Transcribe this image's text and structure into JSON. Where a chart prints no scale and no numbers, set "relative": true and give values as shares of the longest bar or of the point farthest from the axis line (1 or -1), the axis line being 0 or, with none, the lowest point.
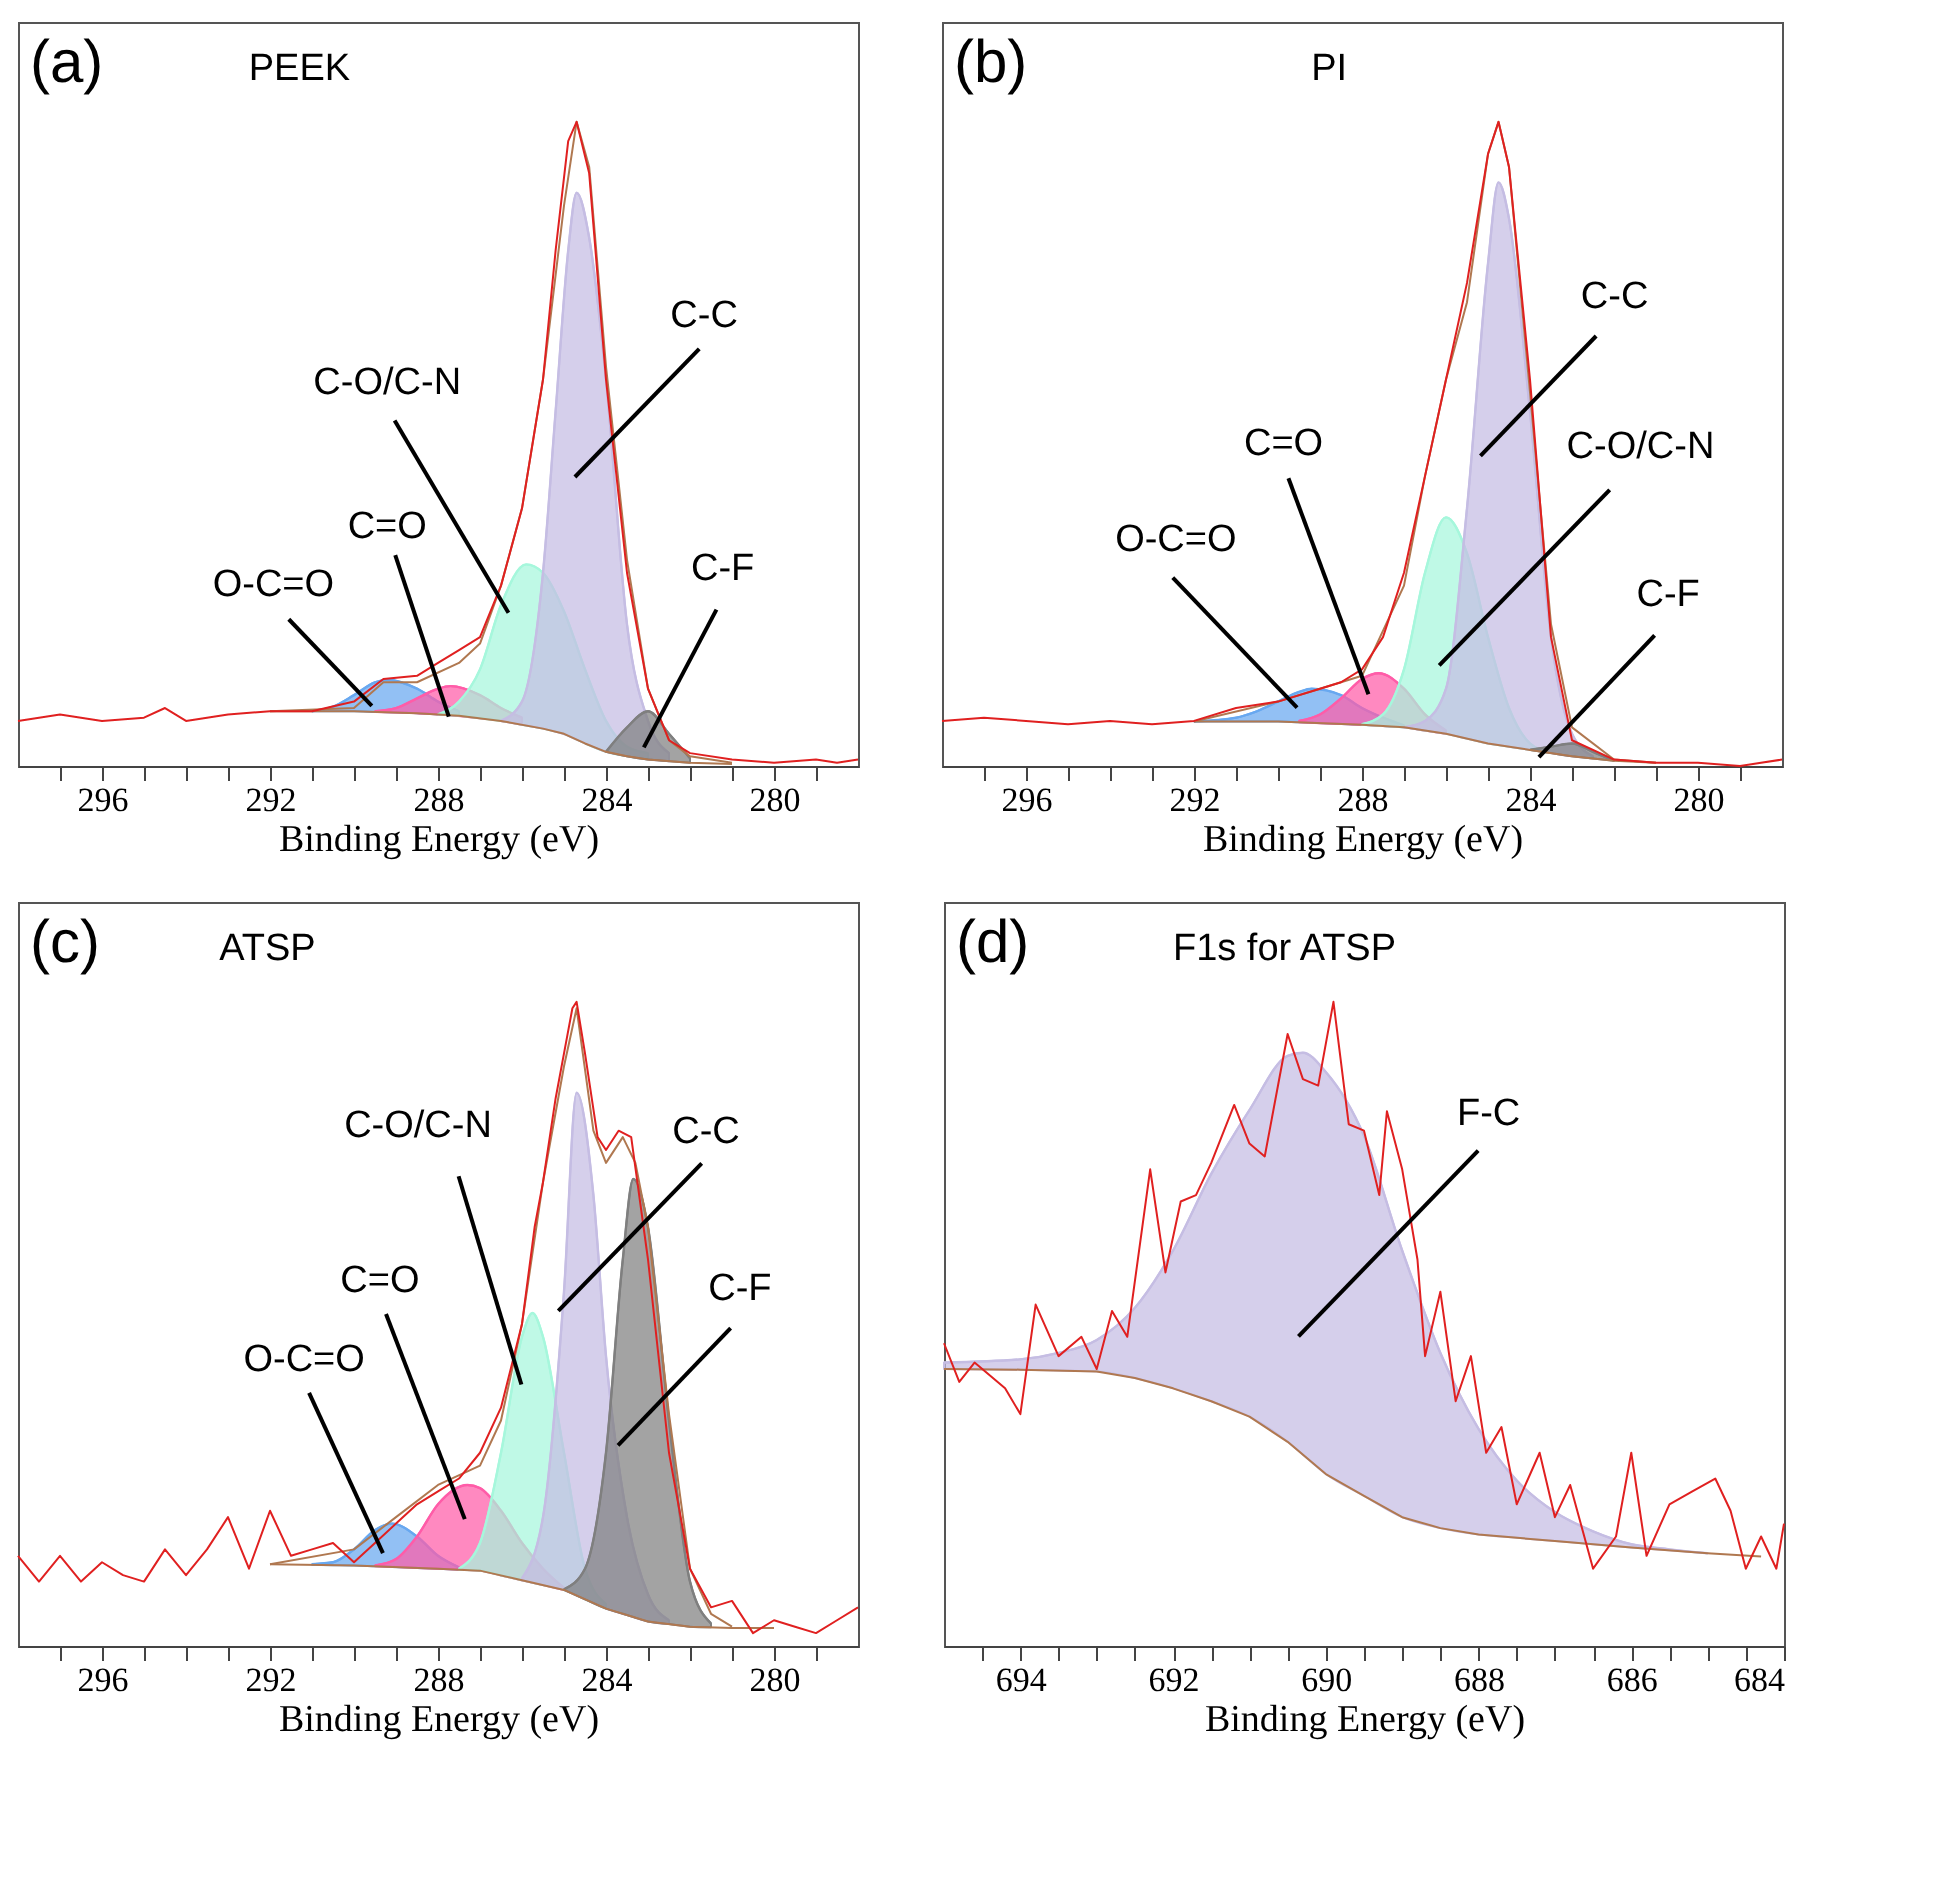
{
  "chart_data": [
    {
      "type": "area",
      "title": "(a)",
      "subtitle": "PEEK",
      "xlabel": "Binding Energy (eV)",
      "relative": true,
      "xlim": [
        298,
        278
      ],
      "xticks": [
        {
          "value": 297,
          "label": null
        },
        296,
        {
          "value": 295,
          "label": null
        },
        {
          "value": 294,
          "label": null
        },
        {
          "value": 293,
          "label": null
        },
        292,
        {
          "value": 291,
          "label": null
        },
        {
          "value": 290,
          "label": null
        },
        {
          "value": 289,
          "label": null
        },
        288,
        {
          "value": 287,
          "label": null
        },
        {
          "value": 286,
          "label": null
        },
        {
          "value": 285,
          "label": null
        },
        284,
        {
          "value": 283,
          "label": null
        },
        {
          "value": 282,
          "label": null
        },
        {
          "value": 281,
          "label": null
        },
        280,
        {
          "value": 279,
          "label": null
        }
      ],
      "series": [
        {
          "type": "area",
          "color": "#68a8f0",
          "x": [
            291,
            290.5,
            290,
            289.5,
            289.2,
            288.5,
            288,
            287.5
          ],
          "values": [
            0.085,
            0.092,
            0.11,
            0.13,
            0.134,
            0.12,
            0.1,
            0.085
          ]
        },
        {
          "type": "area",
          "color": "#ff5ca8",
          "x": [
            289.5,
            289,
            288.5,
            288,
            287.7,
            287,
            286.5,
            286
          ],
          "values": [
            0.085,
            0.09,
            0.105,
            0.12,
            0.124,
            0.11,
            0.09,
            0.075
          ]
        },
        {
          "type": "area",
          "color": "#a6f7dc",
          "x": [
            288,
            287.5,
            287,
            286.5,
            285.9,
            285.5,
            285,
            284.5,
            284,
            283.5,
            283
          ],
          "values": [
            0.08,
            0.1,
            0.15,
            0.25,
            0.313,
            0.3,
            0.24,
            0.15,
            0.07,
            0.03,
            0.02
          ]
        },
        {
          "type": "area",
          "color": "#c5bde3",
          "x": [
            286.5,
            286,
            285.5,
            285.2,
            284.9,
            284.7,
            284.4,
            284,
            283.5,
            283,
            282.5
          ],
          "values": [
            0.07,
            0.1,
            0.3,
            0.55,
            0.8,
            0.89,
            0.82,
            0.6,
            0.22,
            0.07,
            0.02
          ]
        },
        {
          "type": "area",
          "color": "#7f7f7f",
          "x": [
            284,
            283.5,
            283,
            282.5,
            282
          ],
          "values": [
            0.022,
            0.06,
            0.085,
            0.05,
            0.012
          ]
        },
        {
          "type": "line",
          "color": "#b07850",
          "x": [
            292,
            290,
            288.5,
            287.5,
            286.5,
            285.5,
            285,
            284.5,
            284,
            283.5,
            283,
            282,
            281
          ],
          "values": [
            0.085,
            0.085,
            0.082,
            0.078,
            0.07,
            0.058,
            0.05,
            0.035,
            0.022,
            0.015,
            0.01,
            0.005,
            0.003
          ]
        },
        {
          "type": "line",
          "color": "#b07850",
          "x": [
            292,
            290,
            289.3,
            288.5,
            287.5,
            287,
            286.5,
            286,
            285.5,
            285,
            284.7,
            284.4,
            284,
            283.5,
            283,
            282.5,
            282,
            281
          ],
          "values": [
            0.085,
            0.09,
            0.13,
            0.13,
            0.16,
            0.19,
            0.28,
            0.4,
            0.6,
            0.87,
            1.0,
            0.93,
            0.62,
            0.32,
            0.12,
            0.04,
            0.015,
            0.005
          ]
        },
        {
          "type": "line",
          "color": "#e02020",
          "x": [
            298,
            297,
            296,
            295,
            294.5,
            294,
            293,
            292,
            291,
            290,
            289.3,
            288.5,
            288,
            287.5,
            287,
            286.5,
            286,
            285.5,
            285.2,
            284.9,
            284.7,
            284.4,
            284,
            283.5,
            283,
            282.5,
            282,
            281,
            280,
            279,
            278.5,
            278
          ],
          "values": [
            0.07,
            0.08,
            0.07,
            0.075,
            0.09,
            0.07,
            0.08,
            0.085,
            0.085,
            0.1,
            0.135,
            0.14,
            0.16,
            0.18,
            0.2,
            0.28,
            0.4,
            0.6,
            0.8,
            0.97,
            1.0,
            0.92,
            0.6,
            0.3,
            0.12,
            0.04,
            0.02,
            0.01,
            0.005,
            0.01,
            0.005,
            0.01
          ]
        }
      ],
      "annotations": [
        "O-C=O",
        "C=O",
        "C-O/C-N",
        "C-C",
        "C-F"
      ]
    },
    {
      "type": "area",
      "title": "(b)",
      "subtitle": "PI",
      "xlabel": "Binding Energy (eV)",
      "relative": true,
      "xlim": [
        298,
        278
      ],
      "xticks": [
        {
          "value": 297,
          "label": null
        },
        296,
        {
          "value": 295,
          "label": null
        },
        {
          "value": 294,
          "label": null
        },
        {
          "value": 293,
          "label": null
        },
        292,
        {
          "value": 291,
          "label": null
        },
        {
          "value": 290,
          "label": null
        },
        {
          "value": 289,
          "label": null
        },
        288,
        {
          "value": 287,
          "label": null
        },
        {
          "value": 286,
          "label": null
        },
        {
          "value": 285,
          "label": null
        },
        284,
        {
          "value": 283,
          "label": null
        },
        {
          "value": 282,
          "label": null
        },
        {
          "value": 281,
          "label": null
        },
        280,
        {
          "value": 279,
          "label": null
        }
      ],
      "series": [
        {
          "type": "area",
          "color": "#68a8f0",
          "x": [
            292,
            291,
            290.5,
            290,
            289.5,
            289.2,
            288.5,
            288,
            287.5,
            287
          ],
          "values": [
            0.069,
            0.075,
            0.085,
            0.1,
            0.115,
            0.12,
            0.11,
            0.09,
            0.075,
            0.063
          ]
        },
        {
          "type": "area",
          "color": "#ff5ca8",
          "x": [
            289.5,
            289,
            288.5,
            288,
            287.6,
            287,
            286.5,
            286
          ],
          "values": [
            0.07,
            0.08,
            0.105,
            0.135,
            0.144,
            0.12,
            0.08,
            0.055
          ]
        },
        {
          "type": "area",
          "color": "#a6f7dc",
          "x": [
            288,
            287.5,
            287,
            286.5,
            286,
            285.5,
            285,
            284.5,
            284,
            283.5
          ],
          "values": [
            0.065,
            0.08,
            0.15,
            0.3,
            0.386,
            0.33,
            0.2,
            0.09,
            0.035,
            0.02
          ]
        },
        {
          "type": "area",
          "color": "#c5bde3",
          "x": [
            287,
            286.5,
            286,
            285.5,
            285,
            284.75,
            284.5,
            284,
            283.5,
            283,
            282.5
          ],
          "values": [
            0.06,
            0.07,
            0.12,
            0.4,
            0.78,
            0.906,
            0.85,
            0.55,
            0.2,
            0.05,
            0.015
          ]
        },
        {
          "type": "area",
          "color": "#7f7f7f",
          "x": [
            284,
            283.5,
            283,
            282.5,
            282
          ],
          "values": [
            0.025,
            0.03,
            0.035,
            0.022,
            0.008
          ]
        },
        {
          "type": "line",
          "color": "#b07850",
          "x": [
            292,
            290,
            288,
            287,
            286,
            285,
            284,
            283,
            282,
            281
          ],
          "values": [
            0.069,
            0.069,
            0.064,
            0.06,
            0.05,
            0.035,
            0.025,
            0.015,
            0.008,
            0.005
          ]
        },
        {
          "type": "line",
          "color": "#b07850",
          "x": [
            292,
            290,
            289,
            288,
            287,
            286.5,
            286,
            285.5,
            285,
            284.75,
            284.5,
            284,
            283.5,
            283,
            282,
            281
          ],
          "values": [
            0.069,
            0.1,
            0.12,
            0.14,
            0.28,
            0.45,
            0.6,
            0.72,
            0.95,
            1.0,
            0.93,
            0.58,
            0.22,
            0.06,
            0.01,
            0.005
          ]
        },
        {
          "type": "line",
          "color": "#e02020",
          "x": [
            298,
            297,
            296,
            295,
            294,
            293,
            292,
            291,
            290,
            289,
            288.5,
            288,
            287.5,
            287,
            286.5,
            286,
            285.5,
            285,
            284.75,
            284.5,
            284,
            283.5,
            283,
            282,
            281,
            280,
            279,
            278
          ],
          "values": [
            0.07,
            0.075,
            0.07,
            0.065,
            0.07,
            0.065,
            0.07,
            0.09,
            0.1,
            0.12,
            0.13,
            0.15,
            0.2,
            0.3,
            0.45,
            0.6,
            0.75,
            0.95,
            1.0,
            0.93,
            0.6,
            0.2,
            0.04,
            0.01,
            0.005,
            0.005,
            0.0,
            0.01
          ]
        }
      ],
      "annotations": [
        "O-C=O",
        "C=O",
        "C-C",
        "C-O/C-N",
        "C-F"
      ]
    },
    {
      "type": "area",
      "title": "(c)",
      "subtitle": "ATSP",
      "xlabel": "Binding Energy (eV)",
      "relative": true,
      "xlim": [
        298,
        278
      ],
      "xticks": [
        {
          "value": 297,
          "label": null
        },
        296,
        {
          "value": 295,
          "label": null
        },
        {
          "value": 294,
          "label": null
        },
        {
          "value": 293,
          "label": null
        },
        292,
        {
          "value": 291,
          "label": null
        },
        {
          "value": 290,
          "label": null
        },
        {
          "value": 289,
          "label": null
        },
        288,
        {
          "value": 287,
          "label": null
        },
        {
          "value": 286,
          "label": null
        },
        {
          "value": 285,
          "label": null
        },
        284,
        {
          "value": 283,
          "label": null
        },
        {
          "value": 282,
          "label": null
        },
        {
          "value": 281,
          "label": null
        },
        280,
        {
          "value": 279,
          "label": null
        }
      ],
      "series": [
        {
          "type": "area",
          "color": "#68a8f0",
          "x": [
            291,
            290.5,
            290,
            289.5,
            289.1,
            288.5,
            288,
            287.5
          ],
          "values": [
            0.127,
            0.13,
            0.15,
            0.18,
            0.19,
            0.17,
            0.14,
            0.122
          ]
        },
        {
          "type": "area",
          "color": "#ff5ca8",
          "x": [
            289.5,
            289,
            288.5,
            288,
            287.3,
            287,
            286.5,
            286,
            285.5,
            285
          ],
          "values": [
            0.125,
            0.135,
            0.17,
            0.22,
            0.25,
            0.245,
            0.21,
            0.16,
            0.12,
            0.09
          ]
        },
        {
          "type": "area",
          "color": "#a6f7dc",
          "x": [
            287.5,
            287,
            286.5,
            286,
            285.75,
            285.5,
            285,
            284.5,
            284
          ],
          "values": [
            0.12,
            0.16,
            0.3,
            0.48,
            0.517,
            0.48,
            0.3,
            0.12,
            0.065
          ]
        },
        {
          "type": "area",
          "color": "#c5bde3",
          "x": [
            286,
            285.5,
            285,
            284.7,
            284.3,
            284,
            283.5,
            283,
            282.5
          ],
          "values": [
            0.105,
            0.2,
            0.55,
            0.859,
            0.7,
            0.45,
            0.2,
            0.08,
            0.04
          ]
        },
        {
          "type": "area",
          "color": "#7f7f7f",
          "x": [
            285,
            284.5,
            284,
            283.6,
            283.35,
            283,
            282.5,
            282,
            281.5
          ],
          "values": [
            0.088,
            0.12,
            0.3,
            0.6,
            0.725,
            0.65,
            0.35,
            0.1,
            0.035
          ]
        },
        {
          "type": "line",
          "color": "#b07850",
          "x": [
            292,
            290,
            288,
            287,
            286,
            285,
            284,
            283,
            282,
            281,
            280
          ],
          "values": [
            0.127,
            0.125,
            0.12,
            0.117,
            0.102,
            0.087,
            0.058,
            0.038,
            0.03,
            0.028,
            0.028
          ]
        },
        {
          "type": "line",
          "color": "#b07850",
          "x": [
            292,
            290,
            289,
            288,
            287,
            286.5,
            286,
            285.5,
            285,
            284.7,
            284.3,
            284,
            283.6,
            283.3,
            283,
            282.5,
            282,
            281.5,
            281
          ],
          "values": [
            0.127,
            0.15,
            0.2,
            0.25,
            0.28,
            0.35,
            0.5,
            0.72,
            0.9,
            0.99,
            0.8,
            0.75,
            0.79,
            0.75,
            0.65,
            0.36,
            0.12,
            0.05,
            0.03
          ]
        },
        {
          "type": "line",
          "color": "#e02020",
          "x": [
            298,
            297.5,
            297,
            296.5,
            296,
            295.5,
            295,
            294.5,
            294,
            293.5,
            293,
            292.5,
            292,
            291.5,
            291,
            290.5,
            290,
            289.5,
            289,
            288.5,
            288,
            287.5,
            287,
            286.5,
            286,
            285.7,
            285.5,
            285.2,
            285,
            284.8,
            284.7,
            284.5,
            284.2,
            284,
            283.7,
            283.4,
            283,
            282.5,
            282,
            281.5,
            281,
            280.5,
            280,
            279.5,
            279,
            278.5,
            278
          ],
          "values": [
            0.14,
            0.1,
            0.14,
            0.1,
            0.13,
            0.11,
            0.1,
            0.15,
            0.11,
            0.15,
            0.2,
            0.12,
            0.21,
            0.14,
            0.15,
            0.16,
            0.13,
            0.16,
            0.19,
            0.22,
            0.24,
            0.26,
            0.3,
            0.37,
            0.5,
            0.65,
            0.72,
            0.85,
            0.92,
            0.99,
            1.0,
            0.92,
            0.79,
            0.77,
            0.8,
            0.79,
            0.6,
            0.3,
            0.12,
            0.06,
            0.07,
            0.02,
            0.04,
            0.03,
            0.02,
            0.04,
            0.06
          ]
        }
      ],
      "annotations": [
        "O-C=O",
        "C=O",
        "C-O/C-N",
        "C-C",
        "C-F"
      ]
    },
    {
      "type": "area",
      "title": "(d)",
      "subtitle": "F1s for ATSP",
      "xlabel": "Binding Energy (eV)",
      "relative": true,
      "xlim": [
        695,
        684
      ],
      "xticks": [
        {
          "value": 694.5,
          "label": null
        },
        694,
        {
          "value": 693.5,
          "label": null
        },
        {
          "value": 693,
          "label": null
        },
        {
          "value": 692.5,
          "label": null
        },
        692,
        {
          "value": 691.5,
          "label": null
        },
        {
          "value": 691,
          "label": null
        },
        {
          "value": 690.5,
          "label": null
        },
        690,
        {
          "value": 689.5,
          "label": null
        },
        {
          "value": 689,
          "label": null
        },
        {
          "value": 688.5,
          "label": null
        },
        688,
        {
          "value": 687.5,
          "label": null
        },
        {
          "value": 687,
          "label": null
        },
        {
          "value": 686.5,
          "label": null
        },
        686,
        {
          "value": 685.5,
          "label": null
        },
        {
          "value": 685,
          "label": null
        },
        {
          "value": 684.5,
          "label": null
        },
        684
      ],
      "series": [
        {
          "type": "area",
          "color": "#c5bde3",
          "x": [
            695,
            694,
            693.5,
            693,
            692.5,
            692,
            691.5,
            691,
            690.5,
            690.3,
            690,
            689.5,
            689,
            688.5,
            688,
            687.5,
            687,
            686.5,
            686,
            685.5,
            685
          ],
          "values": [
            0.44,
            0.445,
            0.455,
            0.475,
            0.525,
            0.614,
            0.733,
            0.832,
            0.916,
            0.921,
            0.891,
            0.792,
            0.614,
            0.455,
            0.337,
            0.257,
            0.208,
            0.178,
            0.158,
            0.15,
            0.144
          ]
        },
        {
          "type": "line",
          "color": "#b07850",
          "x": [
            695,
            694,
            693,
            692.5,
            692,
            691.5,
            691,
            690.5,
            690,
            689.5,
            689,
            688.5,
            688,
            687,
            686,
            685,
            684.3
          ],
          "values": [
            0.43,
            0.429,
            0.426,
            0.416,
            0.4,
            0.38,
            0.356,
            0.317,
            0.267,
            0.233,
            0.2,
            0.183,
            0.173,
            0.163,
            0.153,
            0.144,
            0.139
          ]
        },
        {
          "type": "line",
          "color": "#e02020",
          "x": [
            695,
            694.8,
            694.6,
            694.2,
            694,
            693.8,
            693.5,
            693.2,
            693,
            692.8,
            692.6,
            692.3,
            692.1,
            691.9,
            691.7,
            691.5,
            691.2,
            691,
            690.8,
            690.5,
            690.3,
            690.1,
            689.9,
            689.7,
            689.5,
            689.3,
            689.2,
            689,
            688.8,
            688.7,
            688.5,
            688.3,
            688.1,
            687.9,
            687.7,
            687.5,
            687.2,
            687,
            686.8,
            686.5,
            686.2,
            686,
            685.8,
            685.5,
            685.2,
            684.9,
            684.7,
            684.5,
            684.3,
            684.1,
            684
          ],
          "values": [
            0.47,
            0.41,
            0.44,
            0.4,
            0.36,
            0.53,
            0.45,
            0.48,
            0.43,
            0.52,
            0.48,
            0.74,
            0.58,
            0.69,
            0.7,
            0.75,
            0.84,
            0.78,
            0.76,
            0.95,
            0.88,
            0.87,
            1.0,
            0.81,
            0.8,
            0.7,
            0.83,
            0.74,
            0.6,
            0.45,
            0.55,
            0.38,
            0.45,
            0.3,
            0.34,
            0.22,
            0.3,
            0.2,
            0.25,
            0.12,
            0.17,
            0.3,
            0.14,
            0.22,
            0.24,
            0.26,
            0.21,
            0.12,
            0.17,
            0.12,
            0.19
          ]
        }
      ],
      "annotations": [
        "F-C"
      ]
    }
  ]
}
